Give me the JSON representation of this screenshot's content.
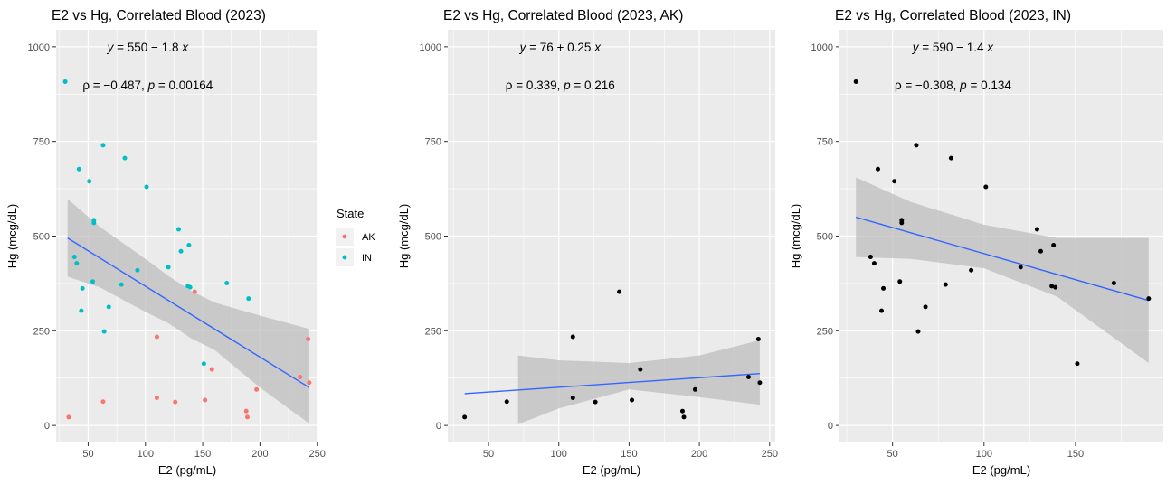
{
  "colors": {
    "AK": "#F8766D",
    "IN": "#00BFC4",
    "black": "#000000",
    "fit": "#3366FF",
    "panel_bg": "#EBEBEB",
    "ribbon": "#BDBDBD"
  },
  "legend": {
    "title": "State",
    "items": [
      {
        "label": "AK",
        "color": "#F8766D"
      },
      {
        "label": "IN",
        "color": "#00BFC4"
      }
    ]
  },
  "chart_data": [
    {
      "type": "scatter",
      "title": "E2 vs Hg, Correlated Blood (2023)",
      "xlabel": "E2 (pg/mL)",
      "ylabel": "Hg (mcg/dL)",
      "xlim": [
        22,
        251
      ],
      "ylim": [
        -45,
        1045
      ],
      "xticks": [
        50,
        100,
        150,
        200,
        250
      ],
      "yticks": [
        0,
        250,
        500,
        750,
        1000
      ],
      "grid": true,
      "legend_position": "right",
      "annotation": {
        "equation": "y = 550 − 1.8 x",
        "eq_parts": [
          "y",
          " = 550 − 1.8 ",
          "x"
        ],
        "stats": "ρ = −0.487, p = 0.00164",
        "stats_parts": [
          "ρ = −0.487, ",
          "p",
          " = 0.00164"
        ],
        "eq_x": 102,
        "eq_y": 1000,
        "stats_x": 102,
        "stats_y": 900
      },
      "fit_line": {
        "x": [
          32,
          243
        ],
        "y": [
          495,
          100
        ]
      },
      "ribbon": {
        "x": [
          32,
          60,
          100,
          120,
          140,
          160,
          200,
          243
        ],
        "upper": [
          598,
          525,
          440,
          395,
          355,
          325,
          290,
          255
        ],
        "lower": [
          393,
          365,
          300,
          270,
          230,
          200,
          100,
          5
        ]
      },
      "series": [
        {
          "name": "AK",
          "color": "#F8766D",
          "x": [
            33,
            63,
            110,
            110,
            126,
            143,
            152,
            158,
            188,
            189,
            197,
            235,
            242,
            243
          ],
          "y": [
            22,
            63,
            234,
            73,
            62,
            353,
            67,
            148,
            38,
            22,
            95,
            128,
            228,
            113
          ]
        },
        {
          "name": "IN",
          "color": "#00BFC4",
          "x": [
            30,
            38,
            40,
            42,
            44,
            45,
            51,
            54,
            55,
            55,
            63,
            64,
            68,
            79,
            82,
            93,
            101,
            120,
            129,
            131,
            137,
            138,
            139,
            151,
            171,
            190
          ],
          "y": [
            908,
            445,
            428,
            677,
            303,
            362,
            645,
            380,
            542,
            535,
            740,
            248,
            313,
            372,
            706,
            410,
            630,
            418,
            518,
            460,
            368,
            476,
            365,
            163,
            376,
            335
          ]
        }
      ]
    },
    {
      "type": "scatter",
      "title": "E2 vs Hg, Correlated Blood (2023, AK)",
      "xlabel": "E2 (pg/mL)",
      "ylabel": "Hg (mcg/dL)",
      "xlim": [
        21,
        254
      ],
      "ylim": [
        -45,
        1045
      ],
      "xticks": [
        50,
        100,
        150,
        200,
        250
      ],
      "yticks": [
        0,
        250,
        500,
        750,
        1000
      ],
      "grid": true,
      "annotation": {
        "equation": "y = 76 + 0.25 x",
        "eq_parts": [
          "y",
          " = 76 + 0.25 ",
          "x"
        ],
        "stats": "ρ = 0.339, p = 0.216",
        "stats_parts": [
          "ρ = 0.339, ",
          "p",
          " = 0.216"
        ],
        "eq_x": 101,
        "eq_y": 1000,
        "stats_x": 101,
        "stats_y": 900
      },
      "fit_line": {
        "x": [
          33,
          243
        ],
        "y": [
          84,
          137
        ]
      },
      "ribbon": {
        "x": [
          71,
          100,
          150,
          200,
          243
        ],
        "upper": [
          185,
          172,
          165,
          185,
          225
        ],
        "lower": [
          3,
          45,
          95,
          75,
          55
        ]
      },
      "series": [
        {
          "name": "",
          "color": "#000000",
          "x": [
            33,
            63,
            110,
            110,
            126,
            143,
            152,
            158,
            188,
            189,
            197,
            235,
            242,
            243
          ],
          "y": [
            22,
            63,
            234,
            73,
            62,
            353,
            67,
            148,
            38,
            22,
            95,
            128,
            228,
            113
          ]
        }
      ]
    },
    {
      "type": "scatter",
      "title": "E2 vs Hg, Correlated Blood (2023, IN)",
      "xlabel": "E2 (pg/mL)",
      "ylabel": "Hg (mcg/dL)",
      "xlim": [
        21,
        198
      ],
      "ylim": [
        -45,
        1045
      ],
      "xticks": [
        50,
        100,
        150
      ],
      "yticks": [
        0,
        250,
        500,
        750,
        1000
      ],
      "grid": true,
      "annotation": {
        "equation": "y = 590 − 1.4 x",
        "eq_parts": [
          "y",
          " = 590 − 1.4 ",
          "x"
        ],
        "stats": "ρ = −0.308, p = 0.134",
        "stats_parts": [
          "ρ = −0.308, ",
          "p",
          " = 0.134"
        ],
        "eq_x": 83,
        "eq_y": 1000,
        "stats_x": 83,
        "stats_y": 900
      },
      "fit_line": {
        "x": [
          30,
          190
        ],
        "y": [
          550,
          330
        ]
      },
      "ribbon": {
        "x": [
          30,
          60,
          100,
          140,
          190
        ],
        "upper": [
          655,
          590,
          530,
          495,
          495
        ],
        "lower": [
          445,
          440,
          415,
          340,
          165
        ]
      },
      "series": [
        {
          "name": "",
          "color": "#000000",
          "x": [
            30,
            38,
            40,
            42,
            44,
            45,
            51,
            54,
            55,
            55,
            63,
            64,
            68,
            79,
            82,
            93,
            101,
            120,
            129,
            131,
            137,
            138,
            139,
            151,
            171,
            190
          ],
          "y": [
            908,
            445,
            428,
            677,
            303,
            362,
            645,
            380,
            542,
            535,
            740,
            248,
            313,
            372,
            706,
            410,
            630,
            418,
            518,
            460,
            368,
            476,
            365,
            163,
            376,
            335
          ]
        }
      ]
    }
  ]
}
